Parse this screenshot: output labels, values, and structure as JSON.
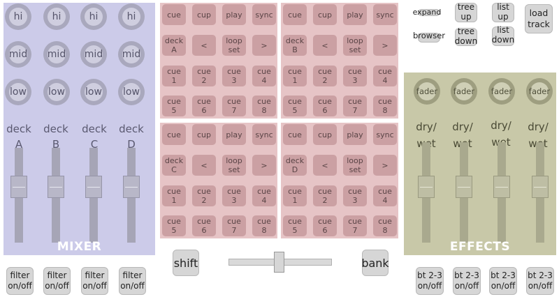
{
  "mixer": {
    "title": "MIXER",
    "rows": [
      {
        "label": "hi"
      },
      {
        "label": "mid"
      },
      {
        "label": "low"
      }
    ],
    "decks": [
      {
        "line1": "deck",
        "line2": "A"
      },
      {
        "line1": "deck",
        "line2": "B"
      },
      {
        "line1": "deck",
        "line2": "C"
      },
      {
        "line1": "deck",
        "line2": "D"
      }
    ],
    "filters": [
      {
        "l1": "filter",
        "l2": "on/off"
      },
      {
        "l1": "filter",
        "l2": "on/off"
      },
      {
        "l1": "filter",
        "l2": "on/off"
      },
      {
        "l1": "filter",
        "l2": "on/off"
      }
    ]
  },
  "decks": [
    {
      "top": [
        "cue",
        "cup",
        "play",
        "sync"
      ],
      "letter": "A",
      "cues": [
        "1",
        "2",
        "3",
        "4",
        "5",
        "6",
        "7",
        "8"
      ]
    },
    {
      "top": [
        "cue",
        "cup",
        "play",
        "sync"
      ],
      "letter": "B",
      "cues": [
        "1",
        "2",
        "3",
        "4",
        "5",
        "6",
        "7",
        "8"
      ]
    },
    {
      "top": [
        "cue",
        "cup",
        "play",
        "sync"
      ],
      "letter": "C",
      "cues": [
        "1",
        "2",
        "3",
        "4",
        "5",
        "6",
        "7",
        "8"
      ]
    },
    {
      "top": [
        "cue",
        "cup",
        "play",
        "sync"
      ],
      "letter": "D",
      "cues": [
        "1",
        "2",
        "3",
        "4",
        "5",
        "6",
        "7",
        "8"
      ]
    }
  ],
  "deck_labels": {
    "deck": "deck",
    "prev": "<",
    "loop1": "loop",
    "loop2": "set",
    "next": ">",
    "cue": "cue"
  },
  "browser": {
    "expand": "expand",
    "browser": "browser",
    "tree_up": [
      "tree",
      "up"
    ],
    "tree_down": [
      "tree",
      "down"
    ],
    "list_up": [
      "list",
      "up"
    ],
    "list_down": [
      "list",
      "down"
    ],
    "load_track": [
      "load",
      "track"
    ]
  },
  "effects": {
    "title": "EFFECTS",
    "fader_label": "fader",
    "wet": [
      "dry/",
      "wet"
    ],
    "buttons": [
      {
        "l1": "bt 2-3",
        "l2": "on/off"
      },
      {
        "l1": "bt 2-3",
        "l2": "on/off"
      },
      {
        "l1": "bt 2-3",
        "l2": "on/off"
      },
      {
        "l1": "bt 2-3",
        "l2": "on/off"
      }
    ]
  },
  "bottom": {
    "shift": "shift",
    "bank": "bank"
  },
  "crossfader_position": 0.49
}
